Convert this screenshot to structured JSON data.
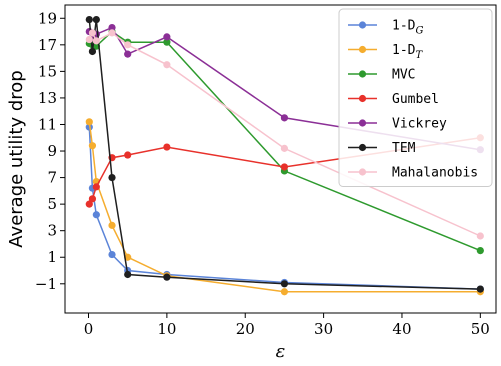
{
  "chart_data": {
    "type": "line",
    "title": "",
    "xlabel": "ε",
    "ylabel": "Average utility drop",
    "xlim": [
      -3,
      52
    ],
    "ylim": [
      -3.2,
      20
    ],
    "xticks": [
      0,
      10,
      20,
      30,
      40,
      50
    ],
    "xtick_labels": [
      "0",
      "10",
      "20",
      "30",
      "40",
      "50"
    ],
    "yticks": [
      -1,
      1,
      3,
      5,
      7,
      9,
      11,
      13,
      15,
      17,
      19
    ],
    "ytick_labels": [
      "−1",
      "1",
      "3",
      "5",
      "7",
      "9",
      "11",
      "13",
      "15",
      "17",
      "19"
    ],
    "grid": false,
    "legend_position": "top-right",
    "series": [
      {
        "name": "1-D",
        "subscript": "G",
        "color": "#5b84d8",
        "points": [
          [
            0.1,
            10.8
          ],
          [
            0.5,
            6.2
          ],
          [
            1,
            4.2
          ],
          [
            3,
            1.2
          ],
          [
            5,
            0.0
          ],
          [
            10,
            -0.3
          ],
          [
            25,
            -0.9
          ],
          [
            50,
            -1.4
          ]
        ]
      },
      {
        "name": "1-D",
        "subscript": "T",
        "color": "#f5ad2f",
        "points": [
          [
            0.1,
            11.2
          ],
          [
            0.5,
            9.4
          ],
          [
            1,
            6.7
          ],
          [
            3,
            3.4
          ],
          [
            5,
            1.0
          ],
          [
            10,
            -0.4
          ],
          [
            25,
            -1.6
          ],
          [
            50,
            -1.6
          ]
        ]
      },
      {
        "name": "MVC",
        "subscript": "",
        "color": "#2e9a2e",
        "points": [
          [
            0.1,
            17.1
          ],
          [
            0.5,
            17.0
          ],
          [
            1,
            16.9
          ],
          [
            3,
            18.0
          ],
          [
            5,
            17.2
          ],
          [
            10,
            17.2
          ],
          [
            25,
            7.5
          ],
          [
            50,
            1.5
          ]
        ]
      },
      {
        "name": "Gumbel",
        "subscript": "",
        "color": "#e8312b",
        "points": [
          [
            0.1,
            5.0
          ],
          [
            0.5,
            5.4
          ],
          [
            1,
            6.3
          ],
          [
            3,
            8.5
          ],
          [
            5,
            8.7
          ],
          [
            10,
            9.3
          ],
          [
            25,
            7.8
          ],
          [
            50,
            10.0
          ]
        ]
      },
      {
        "name": "Vickrey",
        "subscript": "",
        "color": "#8b2f96",
        "points": [
          [
            0.1,
            18.0
          ],
          [
            0.5,
            17.5
          ],
          [
            1,
            17.8
          ],
          [
            3,
            18.3
          ],
          [
            5,
            16.3
          ],
          [
            10,
            17.6
          ],
          [
            25,
            11.5
          ],
          [
            50,
            9.1
          ]
        ]
      },
      {
        "name": "TEM",
        "subscript": "",
        "color": "#1f1f1f",
        "points": [
          [
            0.1,
            18.9
          ],
          [
            0.5,
            16.5
          ],
          [
            1,
            18.9
          ],
          [
            3,
            7.0
          ],
          [
            5,
            -0.3
          ],
          [
            10,
            -0.5
          ],
          [
            25,
            -1.0
          ],
          [
            50,
            -1.4
          ]
        ]
      },
      {
        "name": "Mahalanobis",
        "subscript": "",
        "color": "#f7c2cd",
        "points": [
          [
            0.1,
            17.4
          ],
          [
            0.5,
            17.9
          ],
          [
            1,
            17.3
          ],
          [
            3,
            17.9
          ],
          [
            5,
            17.0
          ],
          [
            10,
            15.5
          ],
          [
            25,
            9.2
          ],
          [
            50,
            2.6
          ]
        ]
      }
    ]
  }
}
